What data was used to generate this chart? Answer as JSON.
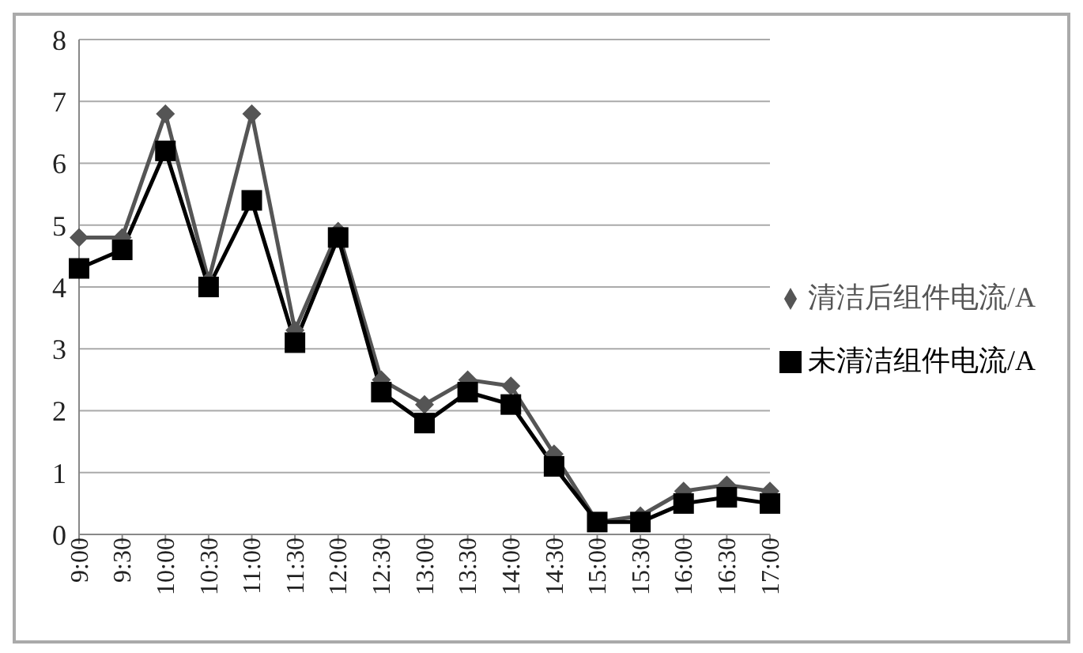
{
  "chart_data": {
    "type": "line",
    "categories": [
      "9:00",
      "9:30",
      "10:00",
      "10:30",
      "11:00",
      "11:30",
      "12:00",
      "12:30",
      "13:00",
      "13:30",
      "14:00",
      "14:30",
      "15:00",
      "15:30",
      "16:00",
      "16:30",
      "17:00"
    ],
    "series": [
      {
        "name": "清洁后组件电流/A",
        "color": "#555555",
        "marker": "diamond",
        "values": [
          4.8,
          4.8,
          6.8,
          4.1,
          6.8,
          3.3,
          4.9,
          2.5,
          2.1,
          2.5,
          2.4,
          1.3,
          0.2,
          0.3,
          0.7,
          0.8,
          0.7
        ]
      },
      {
        "name": "未清洁组件电流/A",
        "color": "#000000",
        "marker": "square",
        "values": [
          4.3,
          4.6,
          6.2,
          4.0,
          5.4,
          3.1,
          4.8,
          2.3,
          1.8,
          2.3,
          2.1,
          1.1,
          0.2,
          0.2,
          0.5,
          0.6,
          0.5
        ]
      }
    ],
    "ylim": [
      0,
      8
    ],
    "yticks": [
      0,
      1,
      2,
      3,
      4,
      5,
      6,
      7,
      8
    ],
    "grid": "y",
    "legend": "right",
    "line_style": "solid"
  }
}
